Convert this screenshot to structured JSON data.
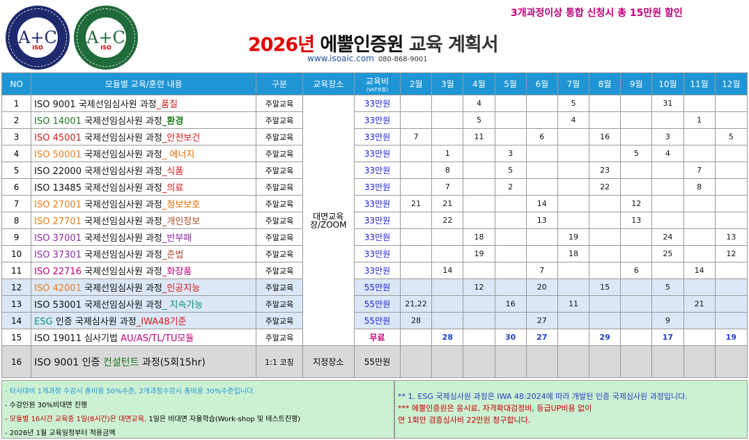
{
  "header": {
    "logo1_mark": "A+C",
    "logo1_sub": "ISO",
    "logo2_mark": "A+C",
    "logo2_sub": "ISO",
    "title_year": "2026년",
    "title_org": " 에뿔인증원",
    "title_plan": " 교육 계획서",
    "url": "www.isoaic.com",
    "tel": "080-868-9001",
    "promo": "3개과정이상 통합 신청시 총 15만원 할인"
  },
  "columns": {
    "no": "NO",
    "course": "모듈별 교육/훈련 내용",
    "category": "구분",
    "venue": "교육장소",
    "fee": "교육비",
    "fee_sub": "(VAT포함)",
    "months": [
      "2월",
      "3월",
      "4월",
      "5월",
      "6월",
      "7월",
      "8월",
      "9월",
      "10월",
      "11월",
      "12월"
    ]
  },
  "venue_shared": "대면교육장/ZOOM",
  "rows": [
    {
      "no": "1",
      "std": "ISO 9001",
      "mid": " 국제선임심사원 과정",
      "tail": "_품질",
      "cat": "주말교육",
      "fee": "33만원",
      "days": [
        "",
        "",
        "4",
        "",
        "",
        "5",
        "",
        "",
        "31",
        "",
        ""
      ]
    },
    {
      "no": "2",
      "std": "ISO 14001",
      "mid": " 국제선임심사원 과정",
      "tail": "_환경",
      "cat": "주말교육",
      "fee": "33만원",
      "days": [
        "",
        "",
        "5",
        "",
        "",
        "4",
        "",
        "",
        "",
        "1",
        ""
      ]
    },
    {
      "no": "3",
      "std": "ISO 45001",
      "mid": " 국제선임심사원 과정",
      "tail": "_안전보건",
      "cat": "주말교육",
      "fee": "33만원",
      "days": [
        "7",
        "",
        "11",
        "",
        "6",
        "",
        "16",
        "",
        "3",
        "",
        "5"
      ]
    },
    {
      "no": "4",
      "std": "ISO 50001",
      "mid": " 국제선임심사원 과정",
      "tail": "_ 에너지",
      "cat": "주말교육",
      "fee": "33만원",
      "days": [
        "",
        "1",
        "",
        "3",
        "",
        "",
        "",
        "5",
        "4",
        "",
        ""
      ]
    },
    {
      "no": "5",
      "std": "ISO 22000",
      "mid": " 국제선임심사원 과정",
      "tail": "_식품",
      "cat": "주말교육",
      "fee": "33만원",
      "days": [
        "",
        "8",
        "",
        "5",
        "",
        "",
        "23",
        "",
        "",
        "7",
        ""
      ]
    },
    {
      "no": "6",
      "std": "ISO 13485",
      "mid": " 국제선임심사원 과정",
      "tail": "_의료",
      "cat": "주말교육",
      "fee": "33만원",
      "days": [
        "",
        "7",
        "",
        "2",
        "",
        "",
        "22",
        "",
        "",
        "8",
        ""
      ]
    },
    {
      "no": "7",
      "std": "ISO 27001",
      "mid": " 국제선임심사원 과정",
      "tail": "_정보보호",
      "cat": "주말교육",
      "fee": "33만원",
      "days": [
        "21",
        "21",
        "",
        "",
        "14",
        "",
        "",
        "12",
        "",
        "",
        ""
      ]
    },
    {
      "no": "8",
      "std": "ISO 27701",
      "mid": " 국제선임심사원 과정",
      "tail": "_개인정보",
      "cat": "주말교육",
      "fee": "33만원",
      "days": [
        "",
        "22",
        "",
        "",
        "13",
        "",
        "",
        "13",
        "",
        "",
        ""
      ]
    },
    {
      "no": "9",
      "std": "ISO 37001",
      "mid": " 국제선임심사원 과정",
      "tail": "_반부패",
      "cat": "주말교육",
      "fee": "33만원",
      "days": [
        "",
        "",
        "18",
        "",
        "",
        "19",
        "",
        "",
        "24",
        "",
        "13"
      ]
    },
    {
      "no": "10",
      "std": "ISO 37301",
      "mid": " 국제선임심사원 과정",
      "tail": "_준법",
      "cat": "주말교육",
      "fee": "33만원",
      "days": [
        "",
        "",
        "19",
        "",
        "",
        "18",
        "",
        "",
        "25",
        "",
        "12"
      ]
    },
    {
      "no": "11",
      "std": "ISO 22716",
      "mid": " 국제선임심사원 과정",
      "tail": "_화장품",
      "cat": "주말교육",
      "fee": "33만원",
      "days": [
        "",
        "14",
        "",
        "",
        "7",
        "",
        "",
        "6",
        "",
        "14",
        ""
      ]
    },
    {
      "no": "12",
      "std": "ISO 42001",
      "mid": " 국제선임심사원 과정",
      "tail": "_인공지능",
      "cat": "주말교육",
      "fee": "55만원",
      "days": [
        "",
        "",
        "12",
        "",
        "20",
        "",
        "15",
        "",
        "5",
        "",
        ""
      ]
    },
    {
      "no": "13",
      "std": "ISO 53001",
      "mid": " 국제선임심사원 과정",
      "tail": "_ 지속가능",
      "cat": "주말교육",
      "fee": "55만원",
      "days": [
        "21,22",
        "",
        "",
        "16",
        "",
        "11",
        "",
        "",
        "",
        "21",
        ""
      ]
    },
    {
      "no": "14",
      "std": "ESG",
      "mid": " 인증 국제심사원 과정",
      "tail": "_IWA48기준",
      "cat": "주말교육",
      "fee": "55만원",
      "days": [
        "28",
        "",
        "",
        "",
        "27",
        "",
        "",
        "",
        "9",
        "",
        ""
      ]
    },
    {
      "no": "15",
      "std": "ISO 19011",
      "mid": " 심사기법 ",
      "tail": "AU/AS/TL/TU모듈",
      "cat": "주말교육",
      "fee": "무료",
      "days": [
        "",
        "28",
        "",
        "30",
        "27",
        "",
        "29",
        "",
        "17",
        "",
        "19"
      ]
    },
    {
      "no": "16",
      "std": "ISO 9001",
      "mid": " 인증 ",
      "tail": "컨설턴트",
      "tail2": " 과정(5회15hr)",
      "cat": "1:1 코칭",
      "venue": "지정장소",
      "fee": "55만원",
      "days": [
        "",
        "",
        "",
        "",
        "",
        "",
        "",
        "",
        "",
        "",
        ""
      ]
    }
  ],
  "footer_left": [
    "- 타사대비 1개과정 수강시 총비용 50%수준, 2개과정수강시 총비용 30%수준입니다.",
    "- 수강인원 30%비대면 진행",
    "- 모듈별 16시간 교육중 1일(8시간)은 대면교육,",
    " 1일은 비대면 자율학습(Work-shop 및 테스트진행)",
    "- 2026년 1월 교육일정부터 적용금액"
  ],
  "footer_right": [
    "**  1. ESG 국제심사원 과정은 IWA 48:2024에 따라 개발된 인증 국제심사원 과정입니다.",
    "*** 에뿔인증원은 응시료, 자격확대검정비, 등급UP비용 없이",
    "      연 1회만 검증심사비 22만원 청구합니다."
  ],
  "colors": {
    "header_blue": "#1f95d6",
    "row_blue": "#dbe7f6",
    "row_gray": "#d9d9d9",
    "footer_green": "#ccf0d2",
    "accent_red": "#e00000",
    "promo_magenta": "#c0007a"
  }
}
